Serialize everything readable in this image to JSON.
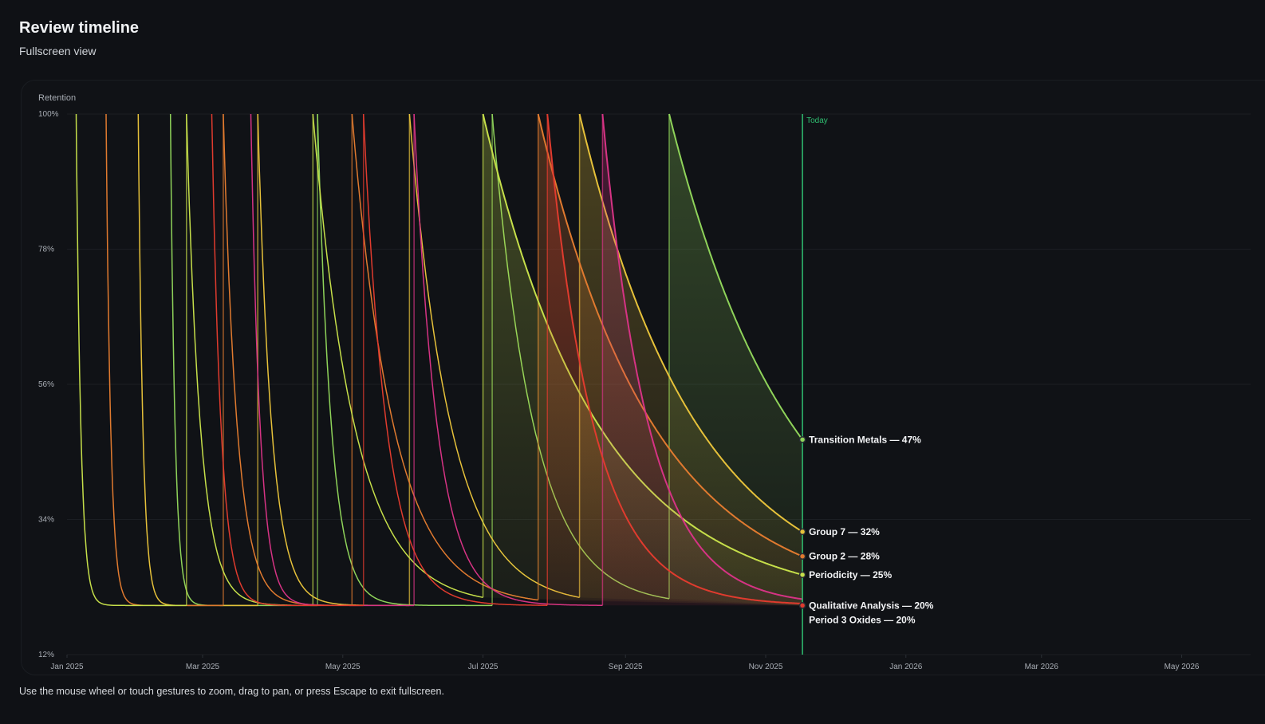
{
  "header": {
    "title": "Review timeline",
    "subtitle": "Fullscreen view"
  },
  "footer": {
    "hint": "Use the mouse wheel or touch gestures to zoom, drag to pan, or press Escape to exit fullscreen."
  },
  "chart_data": {
    "type": "line",
    "ylabel": "Retention",
    "y_ticks": [
      "100%",
      "78%",
      "56%",
      "34%",
      "12%"
    ],
    "ylim": [
      12,
      100
    ],
    "retention_floor": 20,
    "xlim": [
      "2025-01-01",
      "2026-05-31"
    ],
    "x_ticks": [
      {
        "label": "Jan 2025",
        "date": "2025-01-01"
      },
      {
        "label": "Mar 2025",
        "date": "2025-03-01"
      },
      {
        "label": "May 2025",
        "date": "2025-05-01"
      },
      {
        "label": "Jul 2025",
        "date": "2025-07-01"
      },
      {
        "label": "Sep 2025",
        "date": "2025-09-01"
      },
      {
        "label": "Nov 2025",
        "date": "2025-11-01"
      },
      {
        "label": "Jan 2026",
        "date": "2026-01-01"
      },
      {
        "label": "Mar 2026",
        "date": "2026-03-01"
      },
      {
        "label": "May 2026",
        "date": "2026-05-01"
      }
    ],
    "today": {
      "label": "Today",
      "date": "2025-11-17",
      "color": "#2fbf71"
    },
    "grid": true,
    "series": [
      {
        "name": "Transition Metals",
        "label": "Transition Metals — 47%",
        "retention_today": 47,
        "color": "#8fd35a",
        "reviews": [
          "2025-02-15",
          "2025-04-20",
          "2025-07-05",
          "2025-09-20"
        ]
      },
      {
        "name": "Group 7",
        "label": "Group 7 — 32%",
        "retention_today": 32,
        "color": "#e6c13a",
        "reviews": [
          "2025-02-01",
          "2025-03-25",
          "2025-05-30",
          "2025-08-12"
        ]
      },
      {
        "name": "Group 2",
        "label": "Group 2 — 28%",
        "retention_today": 28,
        "color": "#e07a2f",
        "reviews": [
          "2025-01-18",
          "2025-03-10",
          "2025-05-05",
          "2025-07-25"
        ]
      },
      {
        "name": "Periodicity",
        "label": "Periodicity — 25%",
        "retention_today": 25,
        "color": "#c6df4a",
        "reviews": [
          "2025-01-05",
          "2025-02-22",
          "2025-04-18",
          "2025-07-01"
        ]
      },
      {
        "name": "Qualitative Analysis",
        "label": "Qualitative Analysis — 20%",
        "retention_today": 20,
        "color": "#d63384",
        "reviews": [
          "2025-03-22",
          "2025-06-01",
          "2025-08-22"
        ]
      },
      {
        "name": "Period 3 Oxides",
        "label": "Period 3 Oxides — 20%",
        "retention_today": 20,
        "color": "#e03b2e",
        "reviews": [
          "2025-03-05",
          "2025-05-10",
          "2025-07-29"
        ]
      }
    ]
  }
}
